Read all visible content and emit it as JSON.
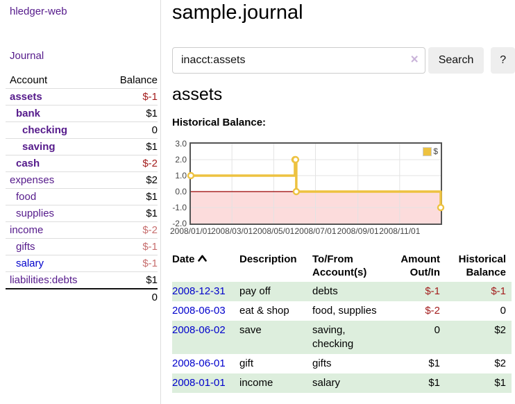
{
  "colors": {
    "link_purple": "#551a8b",
    "link_blue": "#0000cc",
    "negative_strong": "#a31d1d",
    "negative_soft": "#c76e6e",
    "row_shade_green": "#ddeedd",
    "chart_line_yellow": "#edc240",
    "chart_zero_line": "#990000",
    "chart_negative_region": "#fcdcdc"
  },
  "sidebar": {
    "brand": "hledger-web",
    "journal_link": "Journal",
    "account_header": "Account",
    "balance_header": "Balance",
    "accounts": [
      {
        "name": "assets",
        "depth": 0,
        "bold": true,
        "balance": "$-1"
      },
      {
        "name": "bank",
        "depth": 1,
        "bold": true,
        "balance": "$1"
      },
      {
        "name": "checking",
        "depth": 2,
        "bold": true,
        "balance": "0"
      },
      {
        "name": "saving",
        "depth": 2,
        "bold": true,
        "balance": "$1"
      },
      {
        "name": "cash",
        "depth": 1,
        "bold": true,
        "balance": "$-2"
      },
      {
        "name": "expenses",
        "depth": 0,
        "bold": false,
        "balance": "$2"
      },
      {
        "name": "food",
        "depth": 1,
        "bold": false,
        "balance": "$1"
      },
      {
        "name": "supplies",
        "depth": 1,
        "bold": false,
        "balance": "$1"
      },
      {
        "name": "income",
        "depth": 0,
        "bold": false,
        "balance": "$-2"
      },
      {
        "name": "gifts",
        "depth": 1,
        "bold": false,
        "balance": "$-1"
      },
      {
        "name": "salary",
        "depth": 1,
        "bold": false,
        "balance": "$-1",
        "blue": true
      },
      {
        "name": "liabilities:debts",
        "depth": 0,
        "bold": false,
        "balance": "$1"
      }
    ],
    "total": "0"
  },
  "main": {
    "title": "sample.journal",
    "search": {
      "value": "inacct:assets",
      "clear_icon": "×",
      "search_button": "Search",
      "help_button": "?"
    },
    "account_heading": "assets",
    "chart_title": "Historical Balance:"
  },
  "chart_data": {
    "type": "line",
    "step": true,
    "title": "Historical Balance:",
    "series": [
      {
        "name": "$",
        "color": "#edc240",
        "points": [
          [
            "2008-01-01",
            1
          ],
          [
            "2008-06-01",
            2
          ],
          [
            "2008-06-02",
            2
          ],
          [
            "2008-06-03",
            0
          ],
          [
            "2008-12-31",
            -1
          ]
        ]
      }
    ],
    "ylim": [
      -2,
      3
    ],
    "yticks": [
      "3.0",
      "2.0",
      "1.0",
      "0.0",
      "-1.0",
      "-2.0"
    ],
    "xticks": [
      "2008/01/01",
      "2008/03/01",
      "2008/05/01",
      "2008/07/01",
      "2008/09/01",
      "2008/11/01"
    ],
    "xrange": [
      "2008-01-01",
      "2008-12-31"
    ],
    "grid": true,
    "legend": [
      {
        "label": "$",
        "color": "#edc240"
      }
    ],
    "zero_line_color": "#990000",
    "negative_region_color": "#fcdcdc"
  },
  "register": {
    "headers": {
      "date": "Date",
      "description": "Description",
      "accounts": "To/From Account(s)",
      "amount": "Amount Out/In",
      "balance": "Historical Balance"
    },
    "rows": [
      {
        "date": "2008-12-31",
        "description": "pay off",
        "accounts": "debts",
        "amount": "$-1",
        "balance": "$-1"
      },
      {
        "date": "2008-06-03",
        "description": "eat & shop",
        "accounts": "food, supplies",
        "amount": "$-2",
        "balance": "0"
      },
      {
        "date": "2008-06-02",
        "description": "save",
        "accounts": "saving,\nchecking",
        "amount": "0",
        "balance": "$2"
      },
      {
        "date": "2008-06-01",
        "description": "gift",
        "accounts": "gifts",
        "amount": "$1",
        "balance": "$2"
      },
      {
        "date": "2008-01-01",
        "description": "income",
        "accounts": "salary",
        "amount": "$1",
        "balance": "$1"
      }
    ]
  }
}
